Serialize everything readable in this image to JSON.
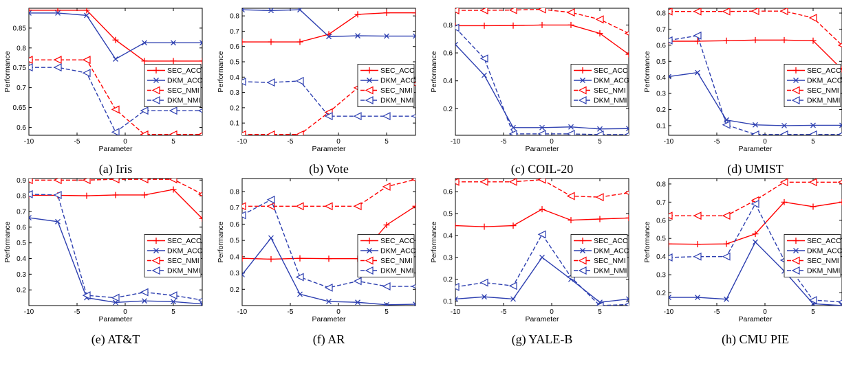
{
  "colors": {
    "sec": "#ff0000",
    "dkm": "#2d3fb0"
  },
  "chart_data": [
    {
      "type": "line",
      "caption": "(a) Iris",
      "xlabel": "Parameter",
      "ylabel": "Performance",
      "x": [
        -10,
        -7,
        -4,
        -1,
        2,
        5,
        8
      ],
      "xlim": [
        -10,
        8
      ],
      "ylim": [
        0.58,
        0.9
      ],
      "xticks": [
        -10,
        -5,
        0,
        5
      ],
      "yticks": [
        0.6,
        0.65,
        0.7,
        0.75,
        0.8,
        0.85
      ],
      "ytick_labels": [
        "0.6",
        "0.65",
        "0.7",
        "0.75",
        "0.8",
        "0.85"
      ],
      "legend_pos": "right-middle",
      "series": [
        {
          "name": "SEC_ACC",
          "values": [
            0.895,
            0.895,
            0.895,
            0.82,
            0.767,
            0.767,
            0.767
          ]
        },
        {
          "name": "DKM_ACC",
          "values": [
            0.888,
            0.888,
            0.882,
            0.772,
            0.813,
            0.813,
            0.813
          ]
        },
        {
          "name": "SEC_NMI",
          "values": [
            0.77,
            0.77,
            0.77,
            0.645,
            0.582,
            0.582,
            0.582
          ]
        },
        {
          "name": "DKM_NMI",
          "values": [
            0.751,
            0.751,
            0.737,
            0.588,
            0.642,
            0.642,
            0.642
          ]
        }
      ]
    },
    {
      "type": "line",
      "caption": "(b) Vote",
      "xlabel": "Parameter",
      "ylabel": "Performance",
      "x": [
        -10,
        -7,
        -4,
        -1,
        2,
        5,
        8
      ],
      "xlim": [
        -10,
        8
      ],
      "ylim": [
        0.02,
        0.85
      ],
      "xticks": [
        -10,
        -5,
        0,
        5
      ],
      "yticks": [
        0.1,
        0.2,
        0.3,
        0.4,
        0.5,
        0.6,
        0.7,
        0.8
      ],
      "ytick_labels": [
        "0.1",
        "0.2",
        "0.3",
        "0.4",
        "0.5",
        "0.6",
        "0.7",
        "0.8"
      ],
      "legend_pos": "right-middle",
      "series": [
        {
          "name": "SEC_ACC",
          "values": [
            0.63,
            0.63,
            0.63,
            0.68,
            0.81,
            0.82,
            0.82
          ]
        },
        {
          "name": "DKM_ACC",
          "values": [
            0.84,
            0.835,
            0.84,
            0.665,
            0.67,
            0.668,
            0.668
          ]
        },
        {
          "name": "SEC_NMI",
          "values": [
            0.025,
            0.025,
            0.025,
            0.17,
            0.33,
            0.355,
            0.355
          ]
        },
        {
          "name": "DKM_NMI",
          "values": [
            0.37,
            0.365,
            0.375,
            0.145,
            0.145,
            0.145,
            0.145
          ]
        }
      ]
    },
    {
      "type": "line",
      "caption": "(c) COIL-20",
      "xlabel": "Parameter",
      "ylabel": "Performance",
      "x": [
        -10,
        -7,
        -4,
        -1,
        2,
        5,
        8
      ],
      "xlim": [
        -10,
        8
      ],
      "ylim": [
        0.01,
        0.92
      ],
      "xticks": [
        -10,
        -5,
        0,
        5
      ],
      "yticks": [
        0.2,
        0.4,
        0.6,
        0.8
      ],
      "ytick_labels": [
        "0.2",
        "0.4",
        "0.6",
        "0.8"
      ],
      "legend_pos": "right-middle",
      "series": [
        {
          "name": "SEC_ACC",
          "values": [
            0.795,
            0.795,
            0.796,
            0.8,
            0.8,
            0.74,
            0.59
          ]
        },
        {
          "name": "DKM_ACC",
          "values": [
            0.66,
            0.44,
            0.065,
            0.065,
            0.07,
            0.055,
            0.058
          ]
        },
        {
          "name": "SEC_NMI",
          "values": [
            0.905,
            0.905,
            0.907,
            0.912,
            0.89,
            0.84,
            0.74
          ]
        },
        {
          "name": "DKM_NMI",
          "values": [
            0.78,
            0.56,
            0.02,
            0.02,
            0.02,
            0.015,
            0.015
          ]
        }
      ]
    },
    {
      "type": "line",
      "caption": "(d) UMIST",
      "xlabel": "Parameter",
      "ylabel": "Performance",
      "x": [
        -10,
        -7,
        -4,
        -1,
        2,
        5,
        8
      ],
      "xlim": [
        -10,
        8
      ],
      "ylim": [
        0.04,
        0.83
      ],
      "xticks": [
        -10,
        -5,
        0,
        5
      ],
      "yticks": [
        0.1,
        0.2,
        0.3,
        0.4,
        0.5,
        0.6,
        0.7,
        0.8
      ],
      "ytick_labels": [
        "0.1",
        "0.2",
        "0.3",
        "0.4",
        "0.5",
        "0.6",
        "0.7",
        "0.8"
      ],
      "legend_pos": "right-middle",
      "series": [
        {
          "name": "SEC_ACC",
          "values": [
            0.625,
            0.625,
            0.628,
            0.632,
            0.632,
            0.628,
            0.45
          ]
        },
        {
          "name": "DKM_ACC",
          "values": [
            0.405,
            0.43,
            0.135,
            0.105,
            0.1,
            0.102,
            0.102
          ]
        },
        {
          "name": "SEC_NMI",
          "values": [
            0.81,
            0.81,
            0.81,
            0.812,
            0.812,
            0.77,
            0.6
          ]
        },
        {
          "name": "DKM_NMI",
          "values": [
            0.63,
            0.66,
            0.105,
            0.045,
            0.045,
            0.045,
            0.045
          ]
        }
      ]
    },
    {
      "type": "line",
      "caption": "(e) AT&T",
      "xlabel": "Parameter",
      "ylabel": "Performance",
      "x": [
        -10,
        -7,
        -4,
        -1,
        2,
        5,
        8
      ],
      "xlim": [
        -10,
        8
      ],
      "ylim": [
        0.1,
        0.91
      ],
      "xticks": [
        -10,
        -5,
        0,
        5
      ],
      "yticks": [
        0.2,
        0.3,
        0.4,
        0.5,
        0.6,
        0.7,
        0.8,
        0.9
      ],
      "ytick_labels": [
        "0.2",
        "0.3",
        "0.4",
        "0.5",
        "0.6",
        "0.7",
        "0.8",
        "0.9"
      ],
      "legend_pos": "right-middle",
      "series": [
        {
          "name": "SEC_ACC",
          "values": [
            0.803,
            0.803,
            0.8,
            0.805,
            0.805,
            0.84,
            0.655
          ]
        },
        {
          "name": "DKM_ACC",
          "values": [
            0.66,
            0.635,
            0.15,
            0.12,
            0.13,
            0.125,
            0.11
          ]
        },
        {
          "name": "SEC_NMI",
          "values": [
            0.9,
            0.9,
            0.9,
            0.905,
            0.905,
            0.905,
            0.81
          ]
        },
        {
          "name": "DKM_NMI",
          "values": [
            0.81,
            0.805,
            0.165,
            0.15,
            0.185,
            0.165,
            0.135
          ]
        }
      ]
    },
    {
      "type": "line",
      "caption": "(f) AR",
      "xlabel": "Parameter",
      "ylabel": "Performance",
      "x": [
        -10,
        -7,
        -4,
        -1,
        2,
        5,
        8
      ],
      "xlim": [
        -10,
        8
      ],
      "ylim": [
        0.1,
        0.88
      ],
      "xticks": [
        -10,
        -5,
        0,
        5
      ],
      "yticks": [
        0.2,
        0.3,
        0.4,
        0.5,
        0.6,
        0.7,
        0.8
      ],
      "ytick_labels": [
        "0.2",
        "0.3",
        "0.4",
        "0.5",
        "0.6",
        "0.7",
        "0.8"
      ],
      "legend_pos": "right-middle",
      "series": [
        {
          "name": "SEC_ACC",
          "values": [
            0.39,
            0.385,
            0.39,
            0.388,
            0.388,
            0.595,
            0.71
          ]
        },
        {
          "name": "DKM_ACC",
          "values": [
            0.29,
            0.515,
            0.17,
            0.125,
            0.12,
            0.105,
            0.108
          ]
        },
        {
          "name": "SEC_NMI",
          "values": [
            0.71,
            0.71,
            0.71,
            0.71,
            0.71,
            0.83,
            0.875
          ]
        },
        {
          "name": "DKM_NMI",
          "values": [
            0.655,
            0.75,
            0.275,
            0.21,
            0.25,
            0.218,
            0.218
          ]
        }
      ]
    },
    {
      "type": "line",
      "caption": "(g) YALE-B",
      "xlabel": "Parameter",
      "ylabel": "Performance",
      "x": [
        -10,
        -7,
        -4,
        -1,
        2,
        5,
        8
      ],
      "xlim": [
        -10,
        8
      ],
      "ylim": [
        0.08,
        0.66
      ],
      "xticks": [
        -10,
        -5,
        0,
        5
      ],
      "yticks": [
        0.1,
        0.2,
        0.3,
        0.4,
        0.5,
        0.6
      ],
      "ytick_labels": [
        "0.1",
        "0.2",
        "0.3",
        "0.4",
        "0.5",
        "0.6"
      ],
      "legend_pos": "right-middle",
      "series": [
        {
          "name": "SEC_ACC",
          "values": [
            0.445,
            0.44,
            0.445,
            0.52,
            0.47,
            0.475,
            0.48
          ]
        },
        {
          "name": "DKM_ACC",
          "values": [
            0.11,
            0.12,
            0.11,
            0.3,
            0.2,
            0.095,
            0.11
          ]
        },
        {
          "name": "SEC_NMI",
          "values": [
            0.645,
            0.645,
            0.645,
            0.655,
            0.58,
            0.575,
            0.595
          ]
        },
        {
          "name": "DKM_NMI",
          "values": [
            0.165,
            0.185,
            0.17,
            0.405,
            0.21,
            0.08,
            0.085
          ]
        }
      ]
    },
    {
      "type": "line",
      "caption": "(h) CMU PIE",
      "xlabel": "Parameter",
      "ylabel": "Performance",
      "x": [
        -10,
        -7,
        -4,
        -1,
        2,
        5,
        8
      ],
      "xlim": [
        -10,
        8
      ],
      "ylim": [
        0.13,
        0.83
      ],
      "xticks": [
        -10,
        -5,
        0,
        5
      ],
      "yticks": [
        0.2,
        0.3,
        0.4,
        0.5,
        0.6,
        0.7,
        0.8
      ],
      "ytick_labels": [
        "0.2",
        "0.3",
        "0.4",
        "0.5",
        "0.6",
        "0.7",
        "0.8"
      ],
      "legend_pos": "right-middle",
      "series": [
        {
          "name": "SEC_ACC",
          "values": [
            0.47,
            0.468,
            0.47,
            0.525,
            0.7,
            0.675,
            0.7
          ]
        },
        {
          "name": "DKM_ACC",
          "values": [
            0.175,
            0.175,
            0.165,
            0.48,
            0.32,
            0.14,
            0.13
          ]
        },
        {
          "name": "SEC_NMI",
          "values": [
            0.625,
            0.625,
            0.625,
            0.71,
            0.81,
            0.81,
            0.81
          ]
        },
        {
          "name": "DKM_NMI",
          "values": [
            0.395,
            0.4,
            0.4,
            0.69,
            0.38,
            0.16,
            0.15
          ]
        }
      ]
    }
  ]
}
